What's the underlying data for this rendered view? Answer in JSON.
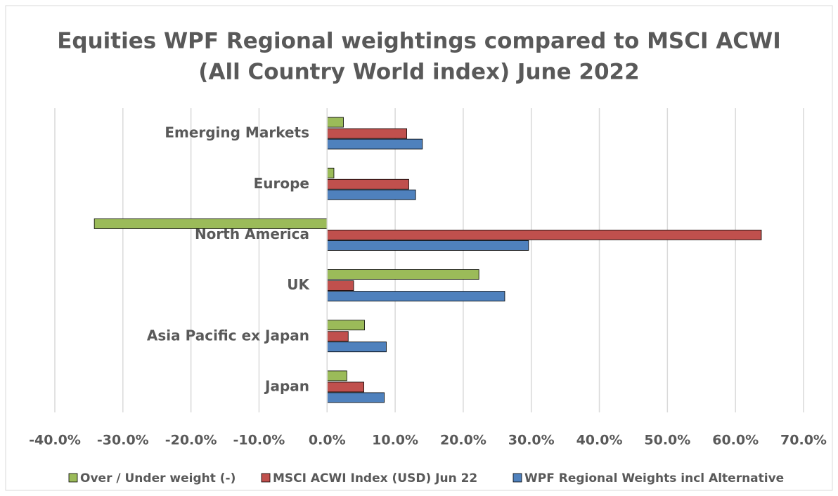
{
  "chart_data": {
    "type": "barh",
    "title": [
      "Equities WPF Regional weightings compared to MSCI ACWI",
      "(All Country World index) June 2022"
    ],
    "categories": [
      "Emerging Markets",
      "Europe",
      "North America",
      "UK",
      "Asia Pacific ex Japan",
      "Japan"
    ],
    "series": [
      {
        "name": "Over / Under weight (-)",
        "color": "#9bbb59",
        "values": [
          2.4,
          1.0,
          -34.2,
          22.3,
          5.5,
          2.9
        ]
      },
      {
        "name": "MSCI  ACWI Index (USD) Jun 22",
        "color": "#c0504d",
        "values": [
          11.7,
          12.0,
          63.8,
          3.9,
          3.1,
          5.4
        ]
      },
      {
        "name": "WPF Regional Weights incl Alternative",
        "color": "#4f81bd",
        "values": [
          14.0,
          13.0,
          29.6,
          26.1,
          8.7,
          8.4
        ]
      }
    ],
    "xlim": [
      -40,
      70
    ],
    "xticks": [
      {
        "value": -40,
        "label": "-40.0%"
      },
      {
        "value": -30,
        "label": "-30.0%"
      },
      {
        "value": -20,
        "label": "-20.0%"
      },
      {
        "value": -10,
        "label": "-10.0%"
      },
      {
        "value": 0,
        "label": "0.0%"
      },
      {
        "value": 10,
        "label": "10.0%"
      },
      {
        "value": 20,
        "label": "20.0%"
      },
      {
        "value": 30,
        "label": "30.0%"
      },
      {
        "value": 40,
        "label": "40.0%"
      },
      {
        "value": 50,
        "label": "50.0%"
      },
      {
        "value": 60,
        "label": "60.0%"
      },
      {
        "value": 70,
        "label": "70.0%"
      }
    ],
    "grid": true,
    "legend": "bottom"
  }
}
